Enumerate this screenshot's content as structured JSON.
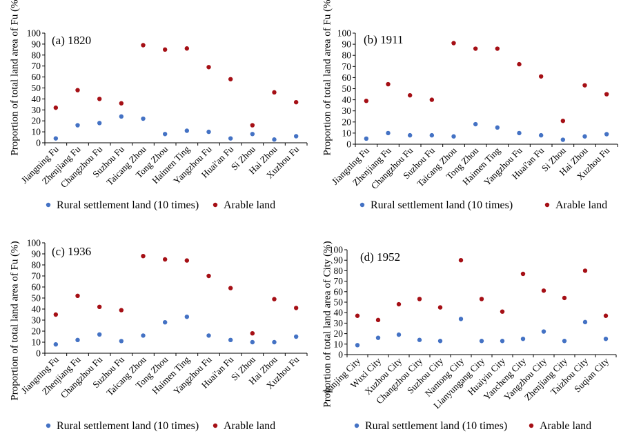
{
  "colors": {
    "rural": "#4472C4",
    "arable": "#A50F15",
    "axis": "#000000"
  },
  "chart_data": [
    {
      "type": "scatter",
      "title": "(a) 1820",
      "ylabel": "Proportion of total land area of Fu (%)",
      "ylim": [
        0,
        100
      ],
      "yticks": [
        0,
        10,
        20,
        30,
        40,
        50,
        60,
        70,
        80,
        90,
        100
      ],
      "categories": [
        "Jiangning Fu",
        "Zhenjiang Fu",
        "Changzhou Fu",
        "Suzhou Fu",
        "Taicang Zhou",
        "Tong Zhou",
        "Haimen Ting",
        "Yangzhou Fu",
        "Huai'an Fu",
        "Si Zhou",
        "Hai Zhou",
        "Xuzhou Fu"
      ],
      "series": [
        {
          "name": "Rural settlement land (10 times)",
          "values": [
            4,
            16,
            18,
            24,
            22,
            8,
            11,
            10,
            4,
            8,
            3,
            6
          ]
        },
        {
          "name": "Arable land",
          "values": [
            32,
            48,
            40,
            36,
            89,
            85,
            86,
            69,
            58,
            16,
            46,
            37
          ]
        }
      ]
    },
    {
      "type": "scatter",
      "title": "(b) 1911",
      "ylabel": "Proportion of total land area of Fu (%)",
      "ylim": [
        0,
        100
      ],
      "yticks": [
        0,
        10,
        20,
        30,
        40,
        50,
        60,
        70,
        80,
        90,
        100
      ],
      "categories": [
        "Jiangning Fu",
        "Zhenjiang Fu",
        "Changzhou Fu",
        "Suzhou Fu",
        "Taicang Zhou",
        "Tong Zhou",
        "Haimen Ting",
        "Yangzhou Fu",
        "Huai'an Fu",
        "Si Zhou",
        "Hai Zhou",
        "Xuzhou Fu"
      ],
      "series": [
        {
          "name": "Rural settlement land (10 times)",
          "values": [
            5,
            10,
            8,
            8,
            7,
            18,
            15,
            10,
            8,
            4,
            7,
            9
          ]
        },
        {
          "name": "Arable land",
          "values": [
            39,
            54,
            44,
            40,
            91,
            86,
            86,
            72,
            61,
            21,
            53,
            45
          ]
        }
      ]
    },
    {
      "type": "scatter",
      "title": "(c) 1936",
      "ylabel": "Proportion of total land area of Fu (%)",
      "ylim": [
        0,
        100
      ],
      "yticks": [
        0,
        10,
        20,
        30,
        40,
        50,
        60,
        70,
        80,
        90,
        100
      ],
      "categories": [
        "Jiangning Fu",
        "Zhenjiang Fu",
        "Changzhou Fu",
        "Suzhou Fu",
        "Taicang Zhou",
        "Tong Zhou",
        "Haimen Ting",
        "Yangzhou Fu",
        "Huai'an Fu",
        "Si Zhou",
        "Hai Zhou",
        "Xuzhou Fu"
      ],
      "series": [
        {
          "name": "Rural settlement land (10 times)",
          "values": [
            8,
            12,
            17,
            11,
            16,
            28,
            33,
            16,
            12,
            10,
            10,
            15
          ]
        },
        {
          "name": "Arable land",
          "values": [
            35,
            52,
            42,
            39,
            88,
            85,
            84,
            70,
            59,
            18,
            49,
            41
          ]
        }
      ]
    },
    {
      "type": "scatter",
      "title": "(d) 1952",
      "ylabel": "Proportion of total land area of City (%)",
      "ylim": [
        0,
        100
      ],
      "yticks": [
        0,
        10,
        20,
        30,
        40,
        50,
        60,
        70,
        80,
        90,
        100
      ],
      "categories": [
        "Nanjing City",
        "Wuxi City",
        "Xuzhou City",
        "Changzhou City",
        "Suzhou City",
        "Nantong City",
        "Lianyungang City",
        "Huaiyin City",
        "Yancheng City",
        "Yangzhou City",
        "Zhenjiang City",
        "Taizhou City",
        "Suqian City"
      ],
      "series": [
        {
          "name": "Rural settlement land (10 times)",
          "values": [
            9,
            16,
            19,
            14,
            13,
            34,
            13,
            13,
            15,
            22,
            13,
            31,
            15
          ]
        },
        {
          "name": "Arable land",
          "values": [
            37,
            33,
            48,
            53,
            45,
            90,
            53,
            41,
            77,
            61,
            54,
            80,
            37
          ]
        }
      ]
    }
  ]
}
